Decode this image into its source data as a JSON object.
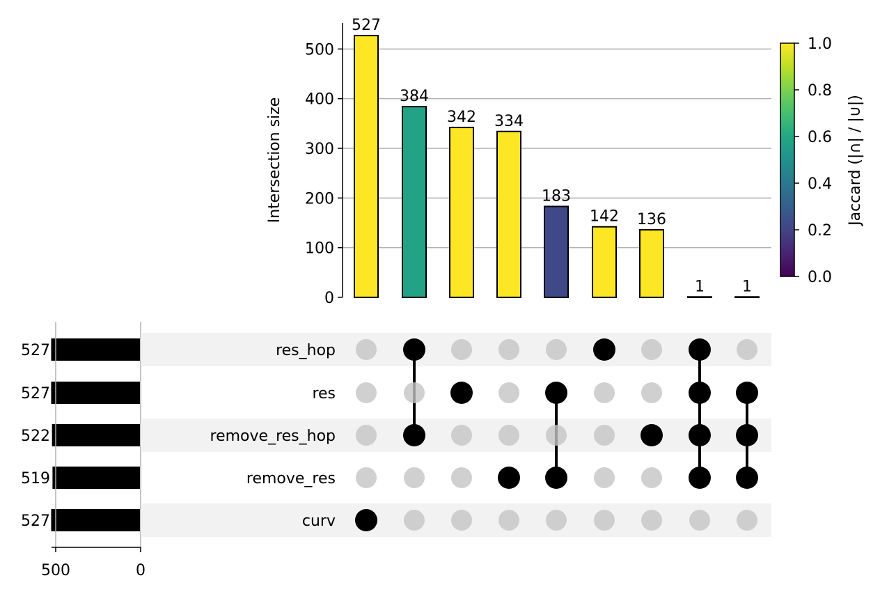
{
  "chart_data": {
    "type": "bar",
    "subtype": "upset",
    "ylabel": "Intersection size",
    "ylim": [
      0,
      550
    ],
    "yticks": [
      "0",
      "100",
      "200",
      "300",
      "400",
      "500"
    ],
    "grid": true,
    "sets": [
      {
        "name": "res_hop",
        "size": 527,
        "size_label": "527"
      },
      {
        "name": "res",
        "size": 527,
        "size_label": "527"
      },
      {
        "name": "remove_res_hop",
        "size": 522,
        "size_label": "522"
      },
      {
        "name": "remove_res",
        "size": 519,
        "size_label": "519"
      },
      {
        "name": "curv",
        "size": 527,
        "size_label": "527"
      }
    ],
    "set_size_xticks": [
      "500",
      "0"
    ],
    "set_size_xlim": [
      0,
      600
    ],
    "intersections": [
      {
        "value": 527,
        "label": "527",
        "members": [
          "curv"
        ],
        "jaccard": 1.0
      },
      {
        "value": 384,
        "label": "384",
        "members": [
          "res_hop",
          "remove_res_hop"
        ],
        "jaccard": 0.58
      },
      {
        "value": 342,
        "label": "342",
        "members": [
          "res"
        ],
        "jaccard": 1.0
      },
      {
        "value": 334,
        "label": "334",
        "members": [
          "remove_res"
        ],
        "jaccard": 1.0
      },
      {
        "value": 183,
        "label": "183",
        "members": [
          "res",
          "remove_res"
        ],
        "jaccard": 0.22
      },
      {
        "value": 142,
        "label": "142",
        "members": [
          "res_hop"
        ],
        "jaccard": 1.0
      },
      {
        "value": 136,
        "label": "136",
        "members": [
          "remove_res_hop"
        ],
        "jaccard": 1.0
      },
      {
        "value": 1,
        "label": "1",
        "members": [
          "res_hop",
          "res",
          "remove_res_hop",
          "remove_res"
        ],
        "jaccard": 1.0
      },
      {
        "value": 1,
        "label": "1",
        "members": [
          "res",
          "remove_res_hop",
          "remove_res"
        ],
        "jaccard": 1.0
      }
    ],
    "colorbar": {
      "label": "Jaccard (|∩| / |∪|)",
      "colormap": "viridis",
      "range": [
        0,
        1
      ],
      "ticks": [
        "0.0",
        "0.2",
        "0.4",
        "0.6",
        "0.8",
        "1.0"
      ]
    },
    "colors": {
      "active_dot": "#000000",
      "inactive_dot": "#c4c4c4",
      "stripe": "#f2f2f2",
      "gridline": "#b0b0b0",
      "set_bar": "#000000"
    }
  }
}
